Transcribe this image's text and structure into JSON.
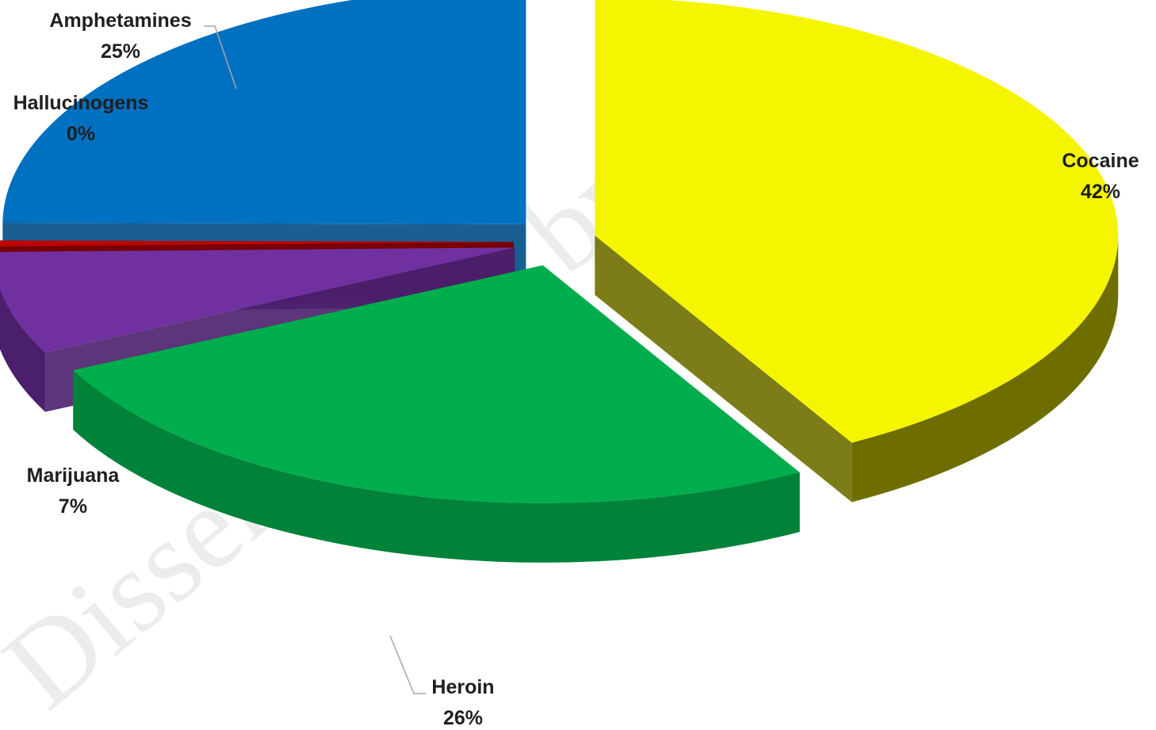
{
  "chart_data": {
    "type": "pie",
    "style": "3d-exploded",
    "title": "",
    "slices": [
      {
        "name": "Cocaine",
        "label": "42%",
        "value": 42,
        "color": "#f5f500",
        "side": "#6e6e00"
      },
      {
        "name": "Heroin",
        "label": "26%",
        "value": 26,
        "color": "#00ad4c",
        "side": "#00823a"
      },
      {
        "name": "Marijuana",
        "label": "7%",
        "value": 7,
        "color": "#7030a0",
        "side": "#4a1f6c"
      },
      {
        "name": "Hallucinogens",
        "label": "0%",
        "value": 0.4,
        "color": "#c00000",
        "side": "#7a0000"
      },
      {
        "name": "Amphetamines",
        "label": "25%",
        "value": 25,
        "color": "#0070c0",
        "side": "#004c85"
      }
    ],
    "legend": "none",
    "data_labels": "outside, name and percent"
  },
  "watermark": "Disseminated by",
  "colors": {
    "background": "#ffffff",
    "label_text": "#1f1f1f",
    "leader_line": "#a6a6a6"
  }
}
